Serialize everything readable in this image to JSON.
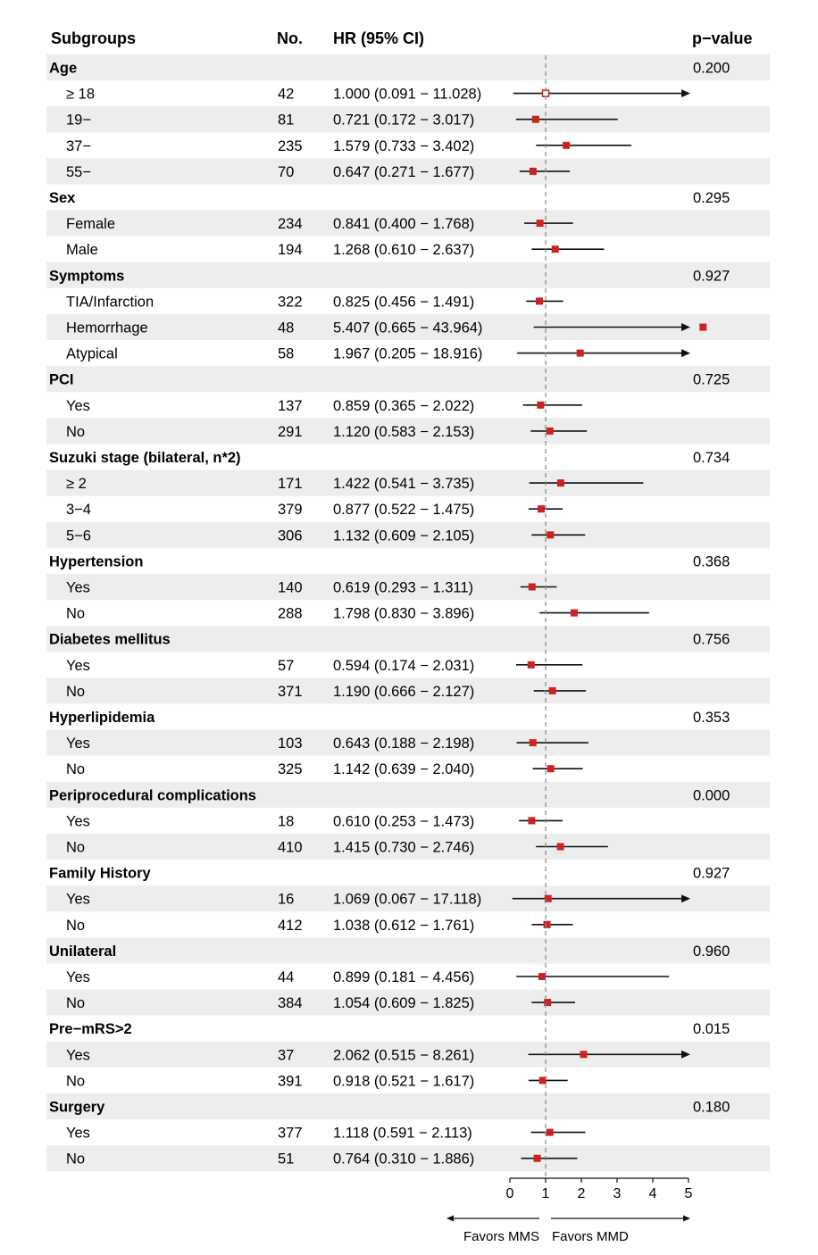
{
  "headers": {
    "subgroups": "Subgroups",
    "no": "No.",
    "hr": "HR (95% CI)",
    "pvalue": "p−value"
  },
  "favors": {
    "left": "Favors MMS",
    "right": "Favors MMD"
  },
  "colors": {
    "stripe": "#ededed",
    "point": "#cc2222",
    "line": "#111111",
    "refline": "#888888"
  },
  "chart_data": {
    "type": "forest",
    "x_ticks": [
      "0",
      "1",
      "2",
      "3",
      "4",
      "5"
    ],
    "xlim": [
      0,
      5
    ],
    "reference_line": 1,
    "groups": [
      {
        "name": "Age",
        "p": "0.200",
        "rows": [
          {
            "label": "≥ 18",
            "n": "42",
            "hr_text": "1.000 (0.091 − 11.028)",
            "hr": 1.0,
            "lo": 0.091,
            "hi": 11.028,
            "open": true
          },
          {
            "label": "19−",
            "n": "81",
            "hr_text": "0.721 (0.172 − 3.017)",
            "hr": 0.721,
            "lo": 0.172,
            "hi": 3.017
          },
          {
            "label": "37−",
            "n": "235",
            "hr_text": "1.579 (0.733 − 3.402)",
            "hr": 1.579,
            "lo": 0.733,
            "hi": 3.402
          },
          {
            "label": "55−",
            "n": "70",
            "hr_text": "0.647 (0.271 − 1.677)",
            "hr": 0.647,
            "lo": 0.271,
            "hi": 1.677
          }
        ]
      },
      {
        "name": "Sex",
        "p": "0.295",
        "rows": [
          {
            "label": "Female",
            "n": "234",
            "hr_text": "0.841 (0.400 − 1.768)",
            "hr": 0.841,
            "lo": 0.4,
            "hi": 1.768
          },
          {
            "label": "Male",
            "n": "194",
            "hr_text": "1.268 (0.610 − 2.637)",
            "hr": 1.268,
            "lo": 0.61,
            "hi": 2.637
          }
        ]
      },
      {
        "name": "Symptoms",
        "p": "0.927",
        "rows": [
          {
            "label": "TIA/Infarction",
            "n": "322",
            "hr_text": "0.825 (0.456 − 1.491)",
            "hr": 0.825,
            "lo": 0.456,
            "hi": 1.491
          },
          {
            "label": "Hemorrhage",
            "n": "48",
            "hr_text": "5.407 (0.665 − 43.964)",
            "hr": 5.407,
            "lo": 0.665,
            "hi": 43.964
          },
          {
            "label": "Atypical",
            "n": "58",
            "hr_text": "1.967 (0.205 − 18.916)",
            "hr": 1.967,
            "lo": 0.205,
            "hi": 18.916
          }
        ]
      },
      {
        "name": "PCI",
        "p": "0.725",
        "rows": [
          {
            "label": "Yes",
            "n": "137",
            "hr_text": "0.859 (0.365 − 2.022)",
            "hr": 0.859,
            "lo": 0.365,
            "hi": 2.022
          },
          {
            "label": "No",
            "n": "291",
            "hr_text": "1.120 (0.583 − 2.153)",
            "hr": 1.12,
            "lo": 0.583,
            "hi": 2.153
          }
        ]
      },
      {
        "name": "Suzuki stage (bilateral, n*2)",
        "p": "0.734",
        "rows": [
          {
            "label": "≥ 2",
            "n": "171",
            "hr_text": "1.422 (0.541 − 3.735)",
            "hr": 1.422,
            "lo": 0.541,
            "hi": 3.735
          },
          {
            "label": "3−4",
            "n": "379",
            "hr_text": "0.877 (0.522 − 1.475)",
            "hr": 0.877,
            "lo": 0.522,
            "hi": 1.475
          },
          {
            "label": "5−6",
            "n": "306",
            "hr_text": "1.132 (0.609 − 2.105)",
            "hr": 1.132,
            "lo": 0.609,
            "hi": 2.105
          }
        ]
      },
      {
        "name": "Hypertension",
        "p": "0.368",
        "rows": [
          {
            "label": "Yes",
            "n": "140",
            "hr_text": "0.619 (0.293 − 1.311)",
            "hr": 0.619,
            "lo": 0.293,
            "hi": 1.311
          },
          {
            "label": "No",
            "n": "288",
            "hr_text": "1.798 (0.830 − 3.896)",
            "hr": 1.798,
            "lo": 0.83,
            "hi": 3.896
          }
        ]
      },
      {
        "name": "Diabetes mellitus",
        "p": "0.756",
        "rows": [
          {
            "label": "Yes",
            "n": "57",
            "hr_text": "0.594 (0.174 − 2.031)",
            "hr": 0.594,
            "lo": 0.174,
            "hi": 2.031
          },
          {
            "label": "No",
            "n": "371",
            "hr_text": "1.190 (0.666 − 2.127)",
            "hr": 1.19,
            "lo": 0.666,
            "hi": 2.127
          }
        ]
      },
      {
        "name": "Hyperlipidemia",
        "p": "0.353",
        "rows": [
          {
            "label": "Yes",
            "n": "103",
            "hr_text": "0.643 (0.188 − 2.198)",
            "hr": 0.643,
            "lo": 0.188,
            "hi": 2.198
          },
          {
            "label": "No",
            "n": "325",
            "hr_text": "1.142 (0.639 − 2.040)",
            "hr": 1.142,
            "lo": 0.639,
            "hi": 2.04
          }
        ]
      },
      {
        "name": "Periprocedural complications",
        "p": "0.000",
        "rows": [
          {
            "label": "Yes",
            "n": "18",
            "hr_text": "0.610 (0.253 − 1.473)",
            "hr": 0.61,
            "lo": 0.253,
            "hi": 1.473
          },
          {
            "label": "No",
            "n": "410",
            "hr_text": "1.415 (0.730 − 2.746)",
            "hr": 1.415,
            "lo": 0.73,
            "hi": 2.746
          }
        ]
      },
      {
        "name": "Family History",
        "p": "0.927",
        "rows": [
          {
            "label": "Yes",
            "n": "16",
            "hr_text": "1.069 (0.067 − 17.118)",
            "hr": 1.069,
            "lo": 0.067,
            "hi": 17.118
          },
          {
            "label": "No",
            "n": "412",
            "hr_text": "1.038 (0.612 − 1.761)",
            "hr": 1.038,
            "lo": 0.612,
            "hi": 1.761
          }
        ]
      },
      {
        "name": "Unilateral",
        "p": "0.960",
        "rows": [
          {
            "label": "Yes",
            "n": "44",
            "hr_text": "0.899 (0.181 − 4.456)",
            "hr": 0.899,
            "lo": 0.181,
            "hi": 4.456
          },
          {
            "label": "No",
            "n": "384",
            "hr_text": "1.054 (0.609 − 1.825)",
            "hr": 1.054,
            "lo": 0.609,
            "hi": 1.825
          }
        ]
      },
      {
        "name": "Pre−mRS>2",
        "p": "0.015",
        "rows": [
          {
            "label": "Yes",
            "n": "37",
            "hr_text": "2.062 (0.515 − 8.261)",
            "hr": 2.062,
            "lo": 0.515,
            "hi": 8.261
          },
          {
            "label": "No",
            "n": "391",
            "hr_text": "0.918 (0.521 − 1.617)",
            "hr": 0.918,
            "lo": 0.521,
            "hi": 1.617
          }
        ]
      },
      {
        "name": "Surgery",
        "p": "0.180",
        "rows": [
          {
            "label": "Yes",
            "n": "377",
            "hr_text": "1.118 (0.591 − 2.113)",
            "hr": 1.118,
            "lo": 0.591,
            "hi": 2.113
          },
          {
            "label": "No",
            "n": "51",
            "hr_text": "0.764 (0.310 − 1.886)",
            "hr": 0.764,
            "lo": 0.31,
            "hi": 1.886
          }
        ]
      }
    ]
  }
}
